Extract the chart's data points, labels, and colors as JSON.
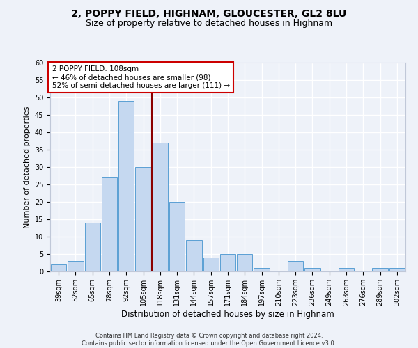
{
  "title": "2, POPPY FIELD, HIGHNAM, GLOUCESTER, GL2 8LU",
  "subtitle": "Size of property relative to detached houses in Highnam",
  "xlabel": "Distribution of detached houses by size in Highnam",
  "ylabel": "Number of detached properties",
  "categories": [
    "39sqm",
    "52sqm",
    "65sqm",
    "78sqm",
    "92sqm",
    "105sqm",
    "118sqm",
    "131sqm",
    "144sqm",
    "157sqm",
    "171sqm",
    "184sqm",
    "197sqm",
    "210sqm",
    "223sqm",
    "236sqm",
    "249sqm",
    "263sqm",
    "276sqm",
    "289sqm",
    "302sqm"
  ],
  "values": [
    2,
    3,
    14,
    27,
    49,
    30,
    37,
    20,
    9,
    4,
    5,
    5,
    1,
    0,
    3,
    1,
    0,
    1,
    0,
    1,
    1
  ],
  "bar_color": "#c5d8f0",
  "bar_edge_color": "#5a9fd4",
  "vline_pos": 5.5,
  "vline_color": "#8b0000",
  "ylim": [
    0,
    60
  ],
  "yticks": [
    0,
    5,
    10,
    15,
    20,
    25,
    30,
    35,
    40,
    45,
    50,
    55,
    60
  ],
  "annotation_text": "2 POPPY FIELD: 108sqm\n← 46% of detached houses are smaller (98)\n52% of semi-detached houses are larger (111) →",
  "annotation_box_color": "#ffffff",
  "annotation_box_edge": "#cc0000",
  "footer_line1": "Contains HM Land Registry data © Crown copyright and database right 2024.",
  "footer_line2": "Contains public sector information licensed under the Open Government Licence v3.0.",
  "bg_color": "#eef2f9",
  "plot_bg_color": "#eef2f9",
  "grid_color": "#ffffff",
  "title_fontsize": 10,
  "subtitle_fontsize": 9,
  "tick_fontsize": 7,
  "ylabel_fontsize": 8,
  "xlabel_fontsize": 8.5,
  "annotation_fontsize": 7.5,
  "footer_fontsize": 6
}
